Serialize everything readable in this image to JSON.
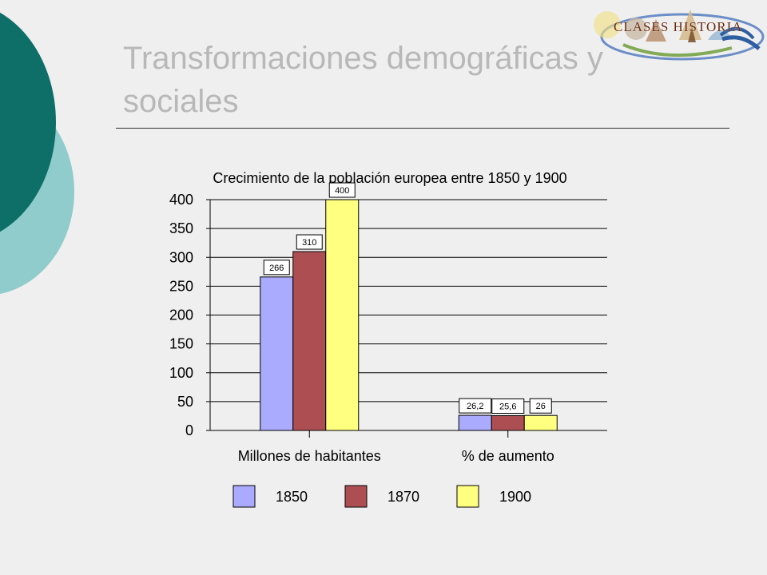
{
  "slide": {
    "title": "Transformaciones demográficas y sociales"
  },
  "logo": {
    "text": "CLASES HISTORIA"
  },
  "chart_data": {
    "type": "bar",
    "title": "Crecimiento de la población europea entre 1850 y 1900",
    "categories": [
      "Millones de habitantes",
      "% de aumento"
    ],
    "series": [
      {
        "name": "1850",
        "values": [
          266,
          26.2
        ],
        "labels": [
          "266",
          "26,2"
        ],
        "color": "#aaaaff"
      },
      {
        "name": "1870",
        "values": [
          310,
          25.6
        ],
        "labels": [
          "310",
          "25,6"
        ],
        "color": "#ad4f52"
      },
      {
        "name": "1900",
        "values": [
          400,
          26
        ],
        "labels": [
          "400",
          "26"
        ],
        "color": "#ffff80"
      }
    ],
    "ylim": [
      0,
      400
    ],
    "yticks": [
      0,
      50,
      100,
      150,
      200,
      250,
      300,
      350,
      400
    ],
    "grid": true,
    "legend": "bottom"
  }
}
